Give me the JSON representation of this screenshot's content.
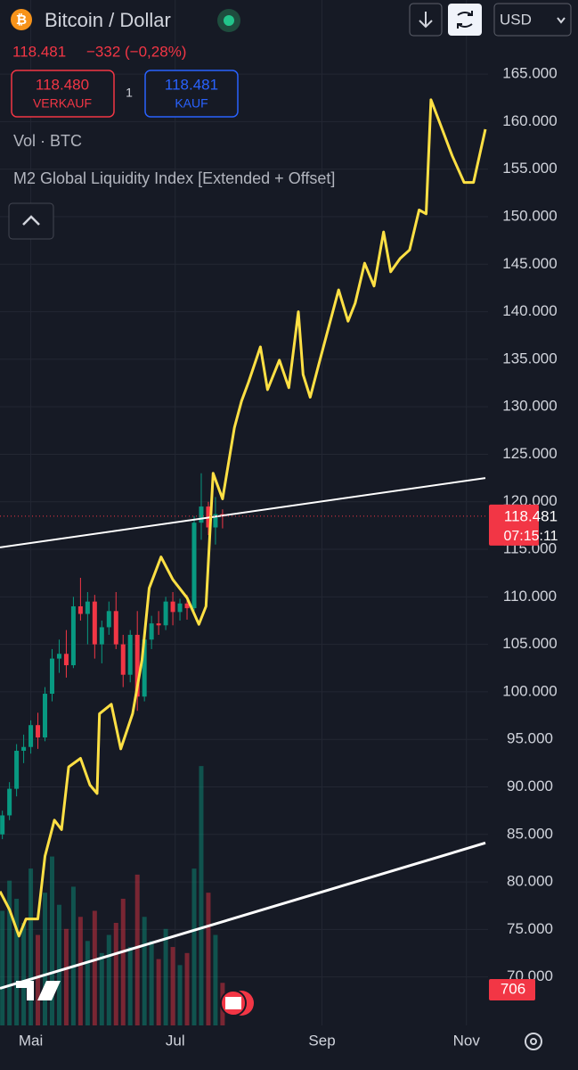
{
  "header": {
    "symbol": "Bitcoin / Dollar",
    "change": "−332 (−0,28%)",
    "sell": {
      "price": "118.480",
      "label": "VERKAUF"
    },
    "quantity": "1",
    "buy": {
      "price": "118.481",
      "label": "KAUF"
    },
    "currency": "USD"
  },
  "chart_data": {
    "type": "candlestick",
    "volume_label": "Vol · BTC",
    "up_color": "#089981",
    "down_color": "#f23645",
    "candles": {
      "x": [
        -12,
        -9,
        -6,
        -3,
        0,
        3,
        6,
        9,
        12,
        15,
        18,
        21,
        24,
        27,
        30,
        33,
        36,
        39,
        42,
        45,
        48,
        51,
        54,
        57,
        60,
        63,
        66,
        69,
        72,
        75,
        78,
        81
      ],
      "open": [
        85000,
        87000,
        89800,
        93800,
        94200,
        96500,
        95200,
        99800,
        103500,
        104000,
        102800,
        109000,
        108200,
        109500,
        105000,
        106800,
        108500,
        105000,
        101800,
        106000,
        99500,
        105500,
        107200,
        107000,
        109500,
        108400,
        109300,
        108800,
        117800,
        119500,
        117300,
        118700
      ],
      "high": [
        87500,
        90500,
        94500,
        95500,
        97000,
        97800,
        100500,
        104500,
        105500,
        106500,
        110000,
        112000,
        110500,
        110200,
        107500,
        109500,
        110500,
        106000,
        106500,
        108500,
        106000,
        108000,
        108500,
        110000,
        110500,
        109800,
        110200,
        118500,
        123000,
        120000,
        120500,
        119200
      ],
      "low": [
        84500,
        86500,
        89000,
        92500,
        93500,
        94000,
        94800,
        99000,
        102000,
        101500,
        102500,
        107500,
        105000,
        103500,
        103000,
        106000,
        104500,
        100500,
        101000,
        98000,
        99000,
        104500,
        106000,
        106500,
        107000,
        107500,
        107600,
        108500,
        116000,
        116500,
        115500,
        117200
      ],
      "close": [
        87000,
        89800,
        93800,
        94200,
        96500,
        95200,
        99800,
        103500,
        104000,
        102800,
        109000,
        108200,
        109500,
        105000,
        106800,
        108500,
        105000,
        101800,
        106000,
        99500,
        105500,
        107200,
        107000,
        109500,
        108400,
        109300,
        108800,
        117800,
        119500,
        117300,
        118700,
        118481
      ],
      "volume": [
        1900,
        2400,
        2100,
        1700,
        2600,
        1500,
        2200,
        2800,
        2000,
        1600,
        2300,
        1800,
        1400,
        1900,
        1200,
        1500,
        1700,
        2100,
        1300,
        2500,
        1800,
        1400,
        1100,
        1600,
        1300,
        1000,
        1200,
        2600,
        4300,
        2200,
        1500,
        706
      ]
    },
    "volume_lim": [
      0,
      17000
    ],
    "series": [
      {
        "name": "M2 Global Liquidity Index [Extended + Offset]",
        "color": "#ffe044",
        "x": [
          -13,
          -9,
          -5,
          -2,
          3,
          6,
          10,
          13,
          16,
          21,
          25,
          28,
          29,
          34,
          38,
          43,
          47,
          50,
          55,
          60,
          66,
          71,
          74,
          77,
          81,
          86,
          89,
          92,
          97,
          100,
          105,
          109,
          113,
          115,
          118,
          122,
          130,
          134,
          137,
          141,
          145,
          149,
          152,
          156,
          160,
          164,
          167,
          169,
          173,
          178,
          183,
          187,
          192
        ],
        "values": [
          79000,
          77100,
          74300,
          76100,
          76100,
          82700,
          86500,
          85500,
          92100,
          93000,
          90200,
          89300,
          97700,
          98700,
          94000,
          97700,
          103400,
          110900,
          114200,
          111800,
          109900,
          107100,
          109000,
          123000,
          120300,
          127800,
          130600,
          132600,
          136300,
          131800,
          134900,
          132000,
          140000,
          133400,
          131000,
          134800,
          142300,
          139000,
          140900,
          145100,
          142700,
          148400,
          144200,
          145600,
          146500,
          150700,
          150300,
          162300,
          159700,
          156400,
          153600,
          153600,
          159200
        ]
      }
    ],
    "trendlines": [
      {
        "x": [
          -13,
          192
        ],
        "values": [
          115200,
          122500
        ],
        "color": "#ffffff"
      },
      {
        "x": [
          -13,
          192
        ],
        "values": [
          68800,
          84100
        ],
        "color": "#ffffff"
      }
    ],
    "last_price": {
      "value": 118481,
      "label": "118.481"
    },
    "countdown": "07:15:11",
    "xlim": [
      -13,
      192
    ],
    "xticks": [
      {
        "value": 0,
        "label": "Mai"
      },
      {
        "value": 61,
        "label": "Jul"
      },
      {
        "value": 123,
        "label": "Sep"
      },
      {
        "value": 184,
        "label": "Nov"
      }
    ],
    "ylim": [
      64900,
      172800
    ],
    "yticks": [
      {
        "value": 165000,
        "label": "165.000"
      },
      {
        "value": 160000,
        "label": "160.000"
      },
      {
        "value": 155000,
        "label": "155.000"
      },
      {
        "value": 150000,
        "label": "150.000"
      },
      {
        "value": 145000,
        "label": "145.000"
      },
      {
        "value": 140000,
        "label": "140.000"
      },
      {
        "value": 135000,
        "label": "135.000"
      },
      {
        "value": 130000,
        "label": "130.000"
      },
      {
        "value": 125000,
        "label": "125.000"
      },
      {
        "value": 120000,
        "label": "120.000"
      },
      {
        "value": 115000,
        "label": "115.000"
      },
      {
        "value": 110000,
        "label": "110.000"
      },
      {
        "value": 105000,
        "label": "105.000"
      },
      {
        "value": 100000,
        "label": "100.000"
      },
      {
        "value": 95000,
        "label": "95.000"
      },
      {
        "value": 90000,
        "label": "90.000"
      },
      {
        "value": 85000,
        "label": "85.000"
      },
      {
        "value": 80000,
        "label": "80.000"
      },
      {
        "value": 75000,
        "label": "75.000"
      },
      {
        "value": 70000,
        "label": "70.000"
      }
    ],
    "grid": true
  }
}
